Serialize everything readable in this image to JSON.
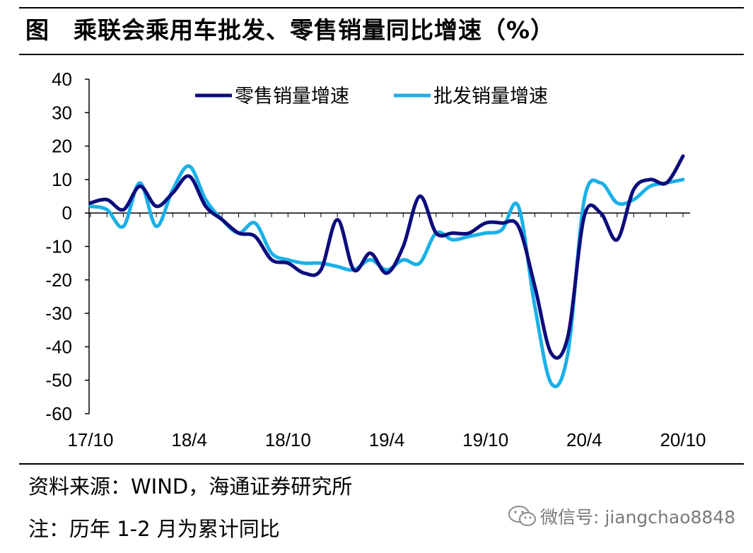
{
  "title": "图　乘联会乘用车批发、零售销量同比增速（%）",
  "source": "资料来源：WIND，海通证券研究所",
  "note": "注：历年 1-2 月为累计同比",
  "watermark": {
    "icon": "wechat-icon",
    "text": "微信号: jiangchao8848"
  },
  "chart_data": {
    "type": "line",
    "title": "乘联会乘用车批发、零售销量同比增速（%）",
    "ylim": [
      -60,
      40
    ],
    "yticks": [
      40,
      30,
      20,
      10,
      0,
      -10,
      -20,
      -30,
      -40,
      -50,
      -60
    ],
    "xtick_labels": [
      "17/10",
      "18/4",
      "18/10",
      "19/4",
      "19/10",
      "20/4",
      "20/10"
    ],
    "x": [
      "17/10",
      "17/11",
      "17/12",
      "18/1",
      "18/2",
      "18/3",
      "18/4",
      "18/5",
      "18/6",
      "18/7",
      "18/8",
      "18/9",
      "18/10",
      "18/11",
      "18/12",
      "19/1",
      "19/2",
      "19/3",
      "19/4",
      "19/5",
      "19/6",
      "19/7",
      "19/8",
      "19/9",
      "19/10",
      "19/11",
      "19/12",
      "20/1",
      "20/2",
      "20/3",
      "20/4",
      "20/5",
      "20/6",
      "20/7",
      "20/8",
      "20/9",
      "20/10"
    ],
    "legend_position": "top",
    "grid": false,
    "series": [
      {
        "name": "零售销量增速",
        "color": "#0c0c7c",
        "values": [
          3,
          4,
          1,
          8,
          2,
          6,
          11,
          2,
          -2,
          -6,
          -7,
          -14,
          -15,
          -18,
          -17,
          -2,
          -17,
          -12,
          -18,
          -10,
          5,
          -6,
          -6,
          -6,
          -3,
          -3,
          -4,
          -22,
          -42,
          -37,
          -1,
          0,
          -8,
          7,
          10,
          9,
          17
        ]
      },
      {
        "name": "批发销量增速",
        "color": "#1ab0e8",
        "values": [
          2,
          1,
          -4,
          9,
          -4,
          7,
          14,
          4,
          -2,
          -6,
          -3,
          -12,
          -14,
          -15,
          -15,
          -16,
          -17,
          -14,
          -17,
          -14,
          -15,
          -6,
          -8,
          -7,
          -6,
          -5,
          2,
          -28,
          -51,
          -42,
          4,
          9,
          3,
          4,
          8,
          9,
          10
        ]
      }
    ]
  }
}
